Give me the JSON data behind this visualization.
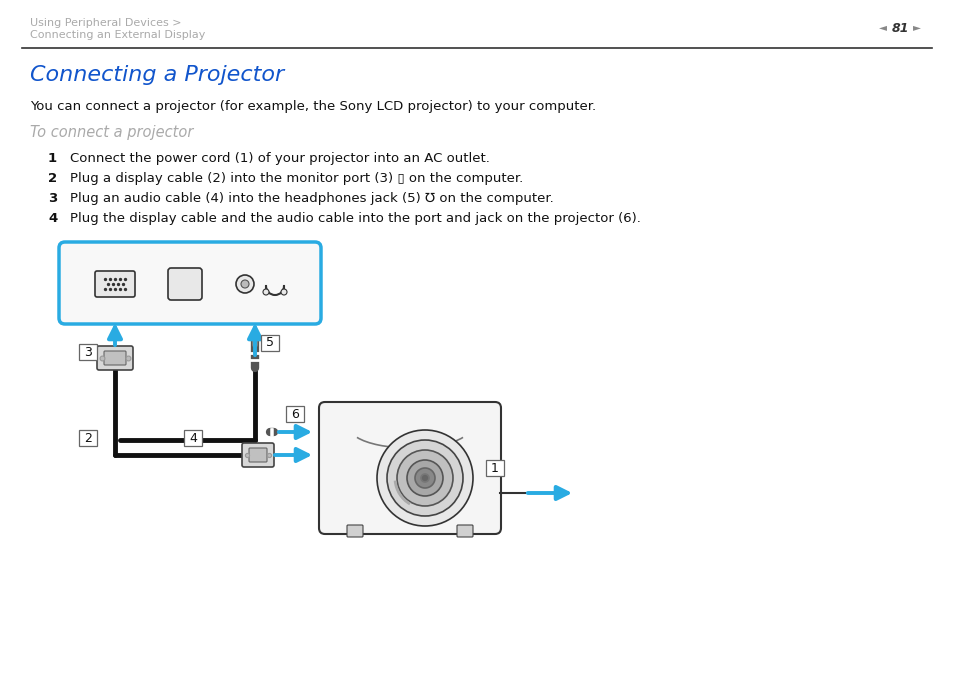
{
  "bg_color": "#ffffff",
  "header_text1": "Using Peripheral Devices >",
  "header_text2": "Connecting an External Display",
  "page_number": "81",
  "title": "Connecting a Projector",
  "title_color": "#1155cc",
  "body_text": "You can connect a projector (for example, the Sony LCD projector) to your computer.",
  "sub_heading": "To connect a projector",
  "sub_heading_color": "#aaaaaa",
  "steps": [
    {
      "num": "1",
      "text": "Connect the power cord (1) of your projector into an AC outlet."
    },
    {
      "num": "2",
      "text": "Plug a display cable (2) into the monitor port (3) ▯ on the computer."
    },
    {
      "num": "3",
      "text": "Plug an audio cable (4) into the headphones jack (5) ℧ on the computer."
    },
    {
      "num": "4",
      "text": "Plug the display cable and the audio cable into the port and jack on the projector (6)."
    }
  ],
  "arrow_color": "#29abe2",
  "header_color": "#aaaaaa",
  "dark_color": "#222222"
}
